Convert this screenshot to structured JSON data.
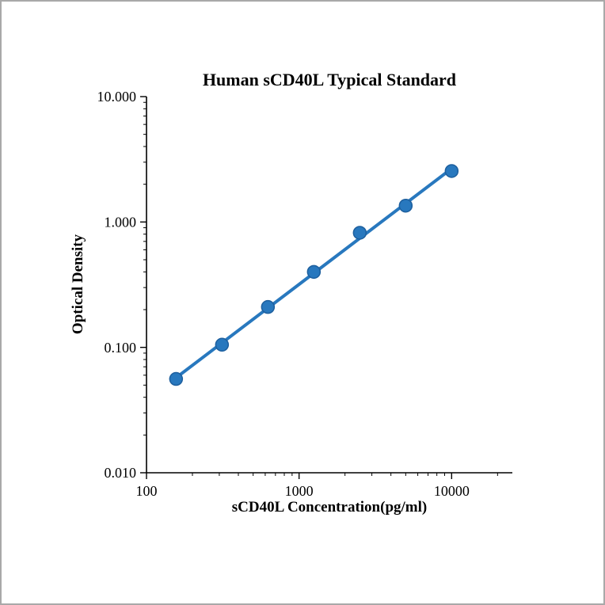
{
  "chart_data": {
    "type": "scatter",
    "title": "Human sCD40L Typical Standard",
    "xlabel": "sCD40L Concentration(pg/ml)",
    "ylabel": "Optical Density",
    "x_scale": "log",
    "y_scale": "log",
    "xlim": [
      100,
      25000
    ],
    "ylim": [
      0.01,
      10
    ],
    "x_ticks": [
      100,
      1000,
      10000
    ],
    "x_tick_labels": [
      "100",
      "1000",
      "10000"
    ],
    "y_ticks": [
      0.01,
      0.1,
      1,
      10
    ],
    "y_tick_labels": [
      "0.010",
      "0.100",
      "1.000",
      "10.000"
    ],
    "grid": false,
    "legend": "none",
    "series": [
      {
        "name": "Typical Standard",
        "x": [
          156.25,
          312.5,
          625,
          1250,
          2500,
          5000,
          10000
        ],
        "y": [
          0.056,
          0.105,
          0.21,
          0.4,
          0.82,
          1.35,
          2.55
        ],
        "trend": "power-law fit line (straight on log-log axes)"
      }
    ],
    "marker": {
      "shape": "circle",
      "radius": 8,
      "color": "#2878BE",
      "edge_color": "#1D5F9E"
    },
    "line": {
      "width": 4,
      "color": "#2878BE"
    },
    "axis_color": "#000000"
  },
  "page": {
    "background": "#ffffff",
    "border_color": "#a9a9a9"
  }
}
